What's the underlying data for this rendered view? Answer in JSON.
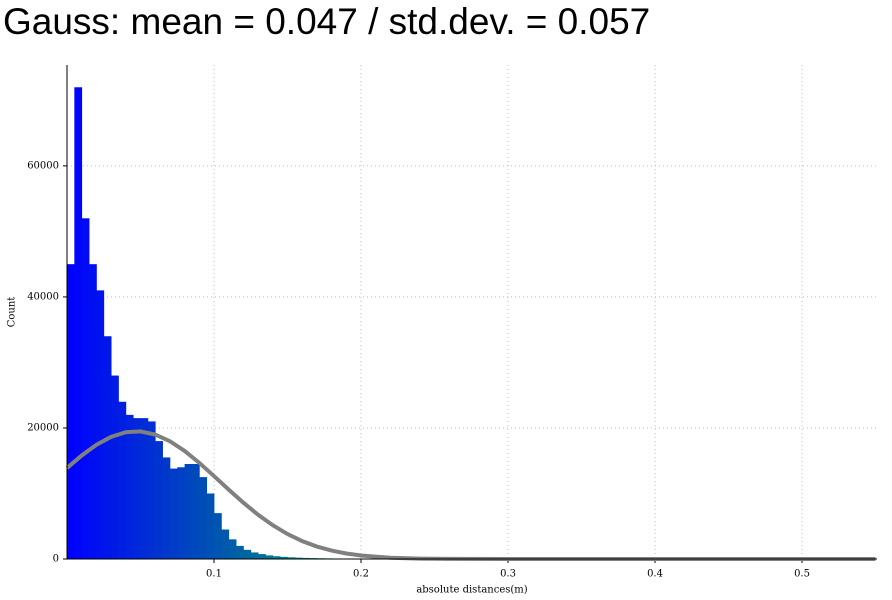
{
  "chart_data": {
    "type": "histogram",
    "title": "Gauss: mean = 0.047 / std.dev. = 0.057",
    "x_label": "absolute distances(m)",
    "y_label": "Count",
    "bins": [
      0,
      0.005,
      0.01,
      0.015,
      0.02,
      0.025,
      0.03,
      0.035,
      0.04,
      0.045,
      0.05,
      0.055,
      0.06,
      0.065,
      0.07,
      0.075,
      0.08,
      0.085,
      0.09,
      0.095,
      0.1,
      0.105,
      0.11,
      0.115,
      0.12,
      0.125,
      0.13,
      0.135,
      0.14,
      0.145,
      0.15,
      0.155,
      0.16,
      0.165,
      0.17,
      0.175,
      0.18,
      0.185,
      0.19,
      0.195,
      0.2,
      0.205,
      0.21,
      0.215,
      0.22,
      0.225,
      0.23,
      0.235,
      0.24,
      0.245,
      0.25
    ],
    "values": [
      45000,
      72000,
      52000,
      45000,
      41000,
      34000,
      28000,
      24000,
      22000,
      21500,
      21500,
      21000,
      18000,
      15500,
      13800,
      14000,
      14500,
      14500,
      12500,
      10000,
      7000,
      4500,
      3000,
      2000,
      1400,
      1000,
      750,
      550,
      420,
      330,
      260,
      210,
      170,
      140,
      115,
      95,
      80,
      65,
      55,
      45,
      38,
      32,
      27,
      23,
      19,
      16,
      13,
      11,
      9,
      7
    ],
    "colors": [
      "#0000ff",
      "#00d040"
    ],
    "overlay": {
      "type": "line",
      "color": "#808080",
      "x": [
        0,
        0.01,
        0.02,
        0.03,
        0.04,
        0.05,
        0.06,
        0.07,
        0.08,
        0.09,
        0.1,
        0.11,
        0.12,
        0.13,
        0.14,
        0.15,
        0.16,
        0.17,
        0.18,
        0.19,
        0.2,
        0.22,
        0.24,
        0.26,
        0.3,
        0.35,
        0.4,
        0.45,
        0.5,
        0.55
      ],
      "values": [
        13880,
        15800,
        17430,
        18650,
        19350,
        19470,
        19000,
        17980,
        16500,
        14670,
        12660,
        10590,
        8590,
        6750,
        5150,
        3810,
        2730,
        1900,
        1280,
        840,
        530,
        195,
        63,
        18,
        0,
        0,
        0,
        0,
        0,
        0
      ]
    },
    "xlim": [
      0,
      0.551
    ],
    "ylim": [
      0,
      75400
    ],
    "xticks": [
      0.1,
      0.2,
      0.3,
      0.4,
      0.5
    ],
    "yticks": [
      0,
      20000,
      40000,
      60000
    ],
    "grid": true
  }
}
